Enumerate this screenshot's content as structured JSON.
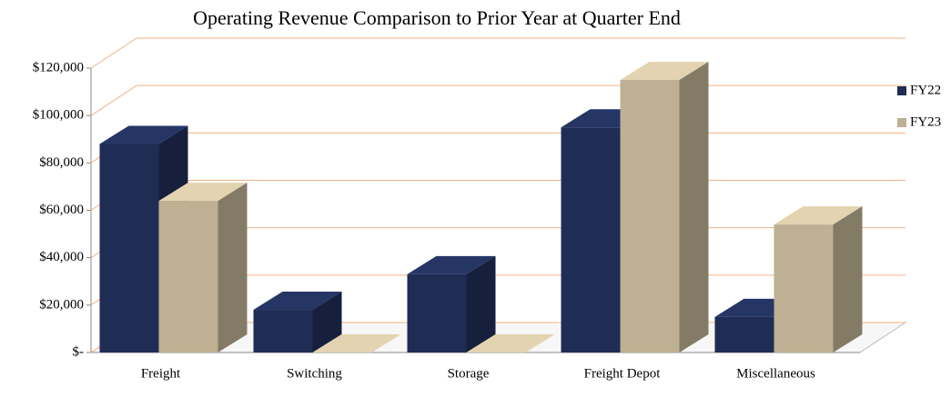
{
  "chart_data": {
    "type": "bar3d",
    "title": "Operating Revenue Comparison to Prior Year at Quarter End",
    "categories": [
      "Freight",
      "Switching",
      "Storage",
      "Freight Depot",
      "Miscellaneous"
    ],
    "series": [
      {
        "name": "FY22",
        "color": "#1f2d54",
        "values": [
          88000,
          18000,
          33000,
          95000,
          15000
        ]
      },
      {
        "name": "FY23",
        "color": "#bdb093",
        "values": [
          64000,
          0,
          0,
          115000,
          54000
        ]
      }
    ],
    "ylim": [
      0,
      120000
    ],
    "yticks": [
      {
        "value": 0,
        "label": "$-"
      },
      {
        "value": 20000,
        "label": "$20,000"
      },
      {
        "value": 40000,
        "label": "$40,000"
      },
      {
        "value": 60000,
        "label": "$60,000"
      },
      {
        "value": 80000,
        "label": "$80,000"
      },
      {
        "value": 100000,
        "label": "$100,000"
      },
      {
        "value": 120000,
        "label": "$120,000"
      }
    ],
    "grid": true,
    "grid_color": "#f4b183",
    "legend": "right"
  }
}
